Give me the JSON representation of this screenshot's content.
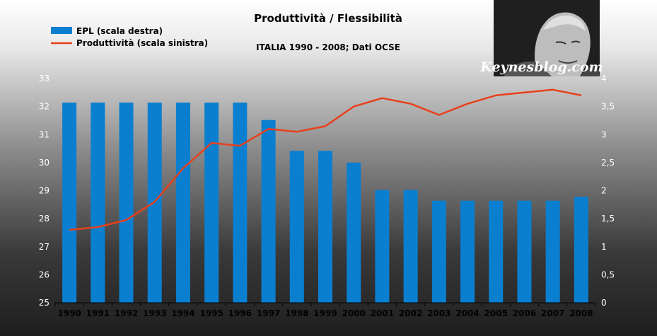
{
  "chart_data": {
    "type": "bar+line",
    "title": "Produttività / Flessibilità",
    "subtitle": "ITALIA 1990 - 2008; Dati OCSE",
    "categories": [
      "1990",
      "1991",
      "1992",
      "1993",
      "1994",
      "1995",
      "1996",
      "1997",
      "1998",
      "1999",
      "2000",
      "2001",
      "2002",
      "2003",
      "2004",
      "2005",
      "2006",
      "2007",
      "2008"
    ],
    "series": [
      {
        "name": "EPL (scala destra)",
        "type": "bar",
        "axis": "right",
        "color": "#0a7fd0",
        "values": [
          3.57,
          3.57,
          3.57,
          3.57,
          3.57,
          3.57,
          3.57,
          3.26,
          2.71,
          2.71,
          2.5,
          2.01,
          2.01,
          1.82,
          1.82,
          1.82,
          1.82,
          1.82,
          1.89
        ]
      },
      {
        "name": "Produttività (scala sinistra)",
        "type": "line",
        "axis": "left",
        "color": "#e8401c",
        "values": [
          27.6,
          27.7,
          27.95,
          28.6,
          29.8,
          30.7,
          30.6,
          31.2,
          31.1,
          31.3,
          32.0,
          32.3,
          32.1,
          31.7,
          32.1,
          32.4,
          32.5,
          32.6,
          32.4
        ]
      }
    ],
    "left_axis": {
      "min": 25,
      "max": 33,
      "step": 1,
      "tick_labels": [
        "25",
        "26",
        "27",
        "28",
        "29",
        "30",
        "31",
        "32",
        "33"
      ]
    },
    "right_axis": {
      "min": 0,
      "max": 4,
      "step": 0.5,
      "tick_labels": [
        "0",
        "0,5",
        "1",
        "1,5",
        "2",
        "2,5",
        "3",
        "3,5",
        "4"
      ]
    },
    "grid": false,
    "legend_position": "top-left"
  },
  "brand": {
    "text": "Keynesblog.com",
    "portrait_icon": "portrait-icon"
  }
}
